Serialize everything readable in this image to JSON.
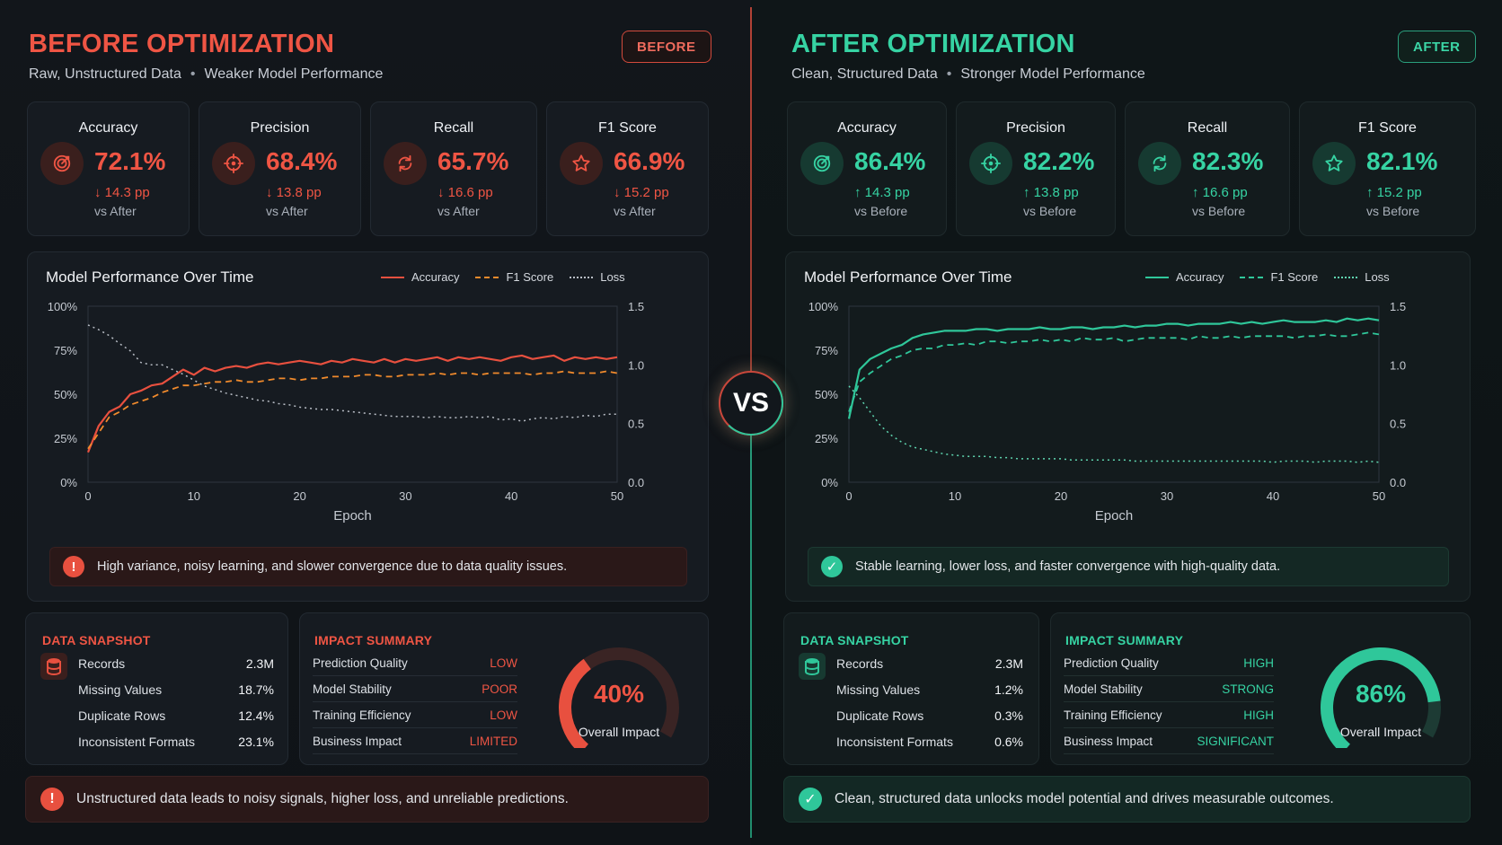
{
  "before": {
    "title": "BEFORE OPTIMIZATION",
    "subtitle_a": "Raw, Unstructured Data",
    "subtitle_sep": "•",
    "subtitle_b": "Weaker Model Performance",
    "tag": "BEFORE",
    "metrics": [
      {
        "label": "Accuracy",
        "value": "72.1%",
        "delta": "↓ 14.3 pp",
        "vs": "vs After",
        "icon": "target-icon"
      },
      {
        "label": "Precision",
        "value": "68.4%",
        "delta": "↓ 13.8 pp",
        "vs": "vs After",
        "icon": "crosshair-icon"
      },
      {
        "label": "Recall",
        "value": "65.7%",
        "delta": "↓ 16.6 pp",
        "vs": "vs After",
        "icon": "refresh-icon"
      },
      {
        "label": "F1 Score",
        "value": "66.9%",
        "delta": "↓ 15.2 pp",
        "vs": "vs After",
        "icon": "star-icon"
      }
    ],
    "note": "High variance, noisy learning, and slower convergence due to data quality issues.",
    "note_icon": "!",
    "snapshot": {
      "heading": "DATA SNAPSHOT",
      "rows": [
        {
          "label": "Records",
          "value": "2.3M"
        },
        {
          "label": "Missing Values",
          "value": "18.7%"
        },
        {
          "label": "Duplicate Rows",
          "value": "12.4%"
        },
        {
          "label": "Inconsistent Formats",
          "value": "23.1%"
        }
      ]
    },
    "impact": {
      "heading": "IMPACT SUMMARY",
      "rows": [
        {
          "label": "Prediction Quality",
          "value": "LOW"
        },
        {
          "label": "Model Stability",
          "value": "POOR"
        },
        {
          "label": "Training Efficiency",
          "value": "LOW"
        },
        {
          "label": "Business Impact",
          "value": "LIMITED"
        }
      ],
      "gauge_value": "40%",
      "gauge_fraction": 0.4,
      "gauge_label": "Overall Impact"
    },
    "footer": "Unstructured data leads to noisy signals, higher loss, and unreliable predictions.",
    "footer_icon": "!"
  },
  "after": {
    "title": "AFTER OPTIMIZATION",
    "subtitle_a": "Clean, Structured Data",
    "subtitle_sep": "•",
    "subtitle_b": "Stronger Model Performance",
    "tag": "AFTER",
    "metrics": [
      {
        "label": "Accuracy",
        "value": "86.4%",
        "delta": "↑ 14.3 pp",
        "vs": "vs Before",
        "icon": "target-icon"
      },
      {
        "label": "Precision",
        "value": "82.2%",
        "delta": "↑ 13.8 pp",
        "vs": "vs Before",
        "icon": "crosshair-icon"
      },
      {
        "label": "Recall",
        "value": "82.3%",
        "delta": "↑ 16.6 pp",
        "vs": "vs Before",
        "icon": "refresh-icon"
      },
      {
        "label": "F1 Score",
        "value": "82.1%",
        "delta": "↑ 15.2 pp",
        "vs": "vs Before",
        "icon": "star-icon"
      }
    ],
    "note": "Stable learning, lower loss, and faster convergence with high-quality data.",
    "note_icon": "✓",
    "snapshot": {
      "heading": "DATA SNAPSHOT",
      "rows": [
        {
          "label": "Records",
          "value": "2.3M"
        },
        {
          "label": "Missing Values",
          "value": "1.2%"
        },
        {
          "label": "Duplicate Rows",
          "value": "0.3%"
        },
        {
          "label": "Inconsistent Formats",
          "value": "0.6%"
        }
      ]
    },
    "impact": {
      "heading": "IMPACT SUMMARY",
      "rows": [
        {
          "label": "Prediction Quality",
          "value": "HIGH"
        },
        {
          "label": "Model Stability",
          "value": "STRONG"
        },
        {
          "label": "Training Efficiency",
          "value": "HIGH"
        },
        {
          "label": "Business Impact",
          "value": "SIGNIFICANT"
        }
      ],
      "gauge_value": "86%",
      "gauge_fraction": 0.86,
      "gauge_label": "Overall Impact"
    },
    "footer": "Clean, structured data unlocks model potential and drives measurable outcomes.",
    "footer_icon": "✓"
  },
  "vs_label": "VS",
  "colors": {
    "before_accent": "#e8503f",
    "before_orange": "#f08a2c",
    "after_accent": "#2fc79a",
    "loss_before": "#b9bec6",
    "loss_after": "#5fd6b0"
  },
  "chart_data": [
    {
      "type": "line",
      "panel": "before",
      "title": "Model Performance Over Time",
      "xlabel": "Epoch",
      "ylabel": "",
      "xlim": [
        0,
        50
      ],
      "ylim": [
        0,
        100
      ],
      "y2lim": [
        0,
        1.5
      ],
      "x_ticks": [
        "0",
        "10",
        "20",
        "30",
        "40",
        "50"
      ],
      "y_ticks": [
        "0%",
        "25%",
        "50%",
        "75%",
        "100%"
      ],
      "y2_ticks": [
        "0.0",
        "0.5",
        "1.0",
        "1.5"
      ],
      "legend_position": "top-right",
      "grid": false,
      "x": [
        0,
        1,
        2,
        3,
        4,
        5,
        6,
        7,
        8,
        9,
        10,
        11,
        12,
        13,
        14,
        15,
        16,
        17,
        18,
        19,
        20,
        21,
        22,
        23,
        24,
        25,
        26,
        27,
        28,
        29,
        30,
        31,
        32,
        33,
        34,
        35,
        36,
        37,
        38,
        39,
        40,
        41,
        42,
        43,
        44,
        45,
        46,
        47,
        48,
        49,
        50
      ],
      "series": [
        {
          "name": "Accuracy",
          "axis": "left",
          "style": "solid",
          "values": [
            17,
            32,
            40,
            43,
            50,
            52,
            55,
            56,
            60,
            64,
            61,
            65,
            63,
            65,
            66,
            65,
            67,
            68,
            67,
            68,
            69,
            68,
            67,
            69,
            68,
            70,
            69,
            68,
            70,
            68,
            70,
            69,
            70,
            71,
            69,
            71,
            70,
            71,
            70,
            69,
            71,
            72,
            70,
            71,
            72,
            69,
            71,
            70,
            71,
            70,
            71
          ]
        },
        {
          "name": "F1 Score",
          "axis": "left",
          "style": "dashed",
          "values": [
            19,
            28,
            37,
            40,
            44,
            46,
            48,
            51,
            53,
            55,
            55,
            56,
            57,
            57,
            58,
            57,
            57,
            58,
            59,
            59,
            58,
            59,
            59,
            60,
            60,
            60,
            61,
            61,
            60,
            60,
            61,
            61,
            61,
            62,
            61,
            62,
            62,
            61,
            62,
            62,
            62,
            62,
            61,
            62,
            62,
            63,
            62,
            62,
            62,
            63,
            62
          ]
        },
        {
          "name": "Loss",
          "axis": "right",
          "style": "dotted",
          "values": [
            1.34,
            1.3,
            1.25,
            1.18,
            1.12,
            1.02,
            1.0,
            1.0,
            0.96,
            0.92,
            0.87,
            0.82,
            0.79,
            0.76,
            0.74,
            0.72,
            0.7,
            0.69,
            0.67,
            0.66,
            0.64,
            0.63,
            0.62,
            0.62,
            0.61,
            0.6,
            0.59,
            0.58,
            0.57,
            0.56,
            0.56,
            0.56,
            0.55,
            0.56,
            0.55,
            0.55,
            0.56,
            0.55,
            0.56,
            0.53,
            0.54,
            0.52,
            0.54,
            0.55,
            0.54,
            0.56,
            0.55,
            0.57,
            0.56,
            0.58,
            0.58
          ]
        }
      ]
    },
    {
      "type": "line",
      "panel": "after",
      "title": "Model Performance Over Time",
      "xlabel": "Epoch",
      "ylabel": "",
      "xlim": [
        0,
        50
      ],
      "ylim": [
        0,
        100
      ],
      "y2lim": [
        0,
        1.5
      ],
      "x_ticks": [
        "0",
        "10",
        "20",
        "30",
        "40",
        "50"
      ],
      "y_ticks": [
        "0%",
        "25%",
        "50%",
        "75%",
        "100%"
      ],
      "y2_ticks": [
        "0.0",
        "0.5",
        "1.0",
        "1.5"
      ],
      "legend_position": "top-right",
      "grid": false,
      "x": [
        0,
        1,
        2,
        3,
        4,
        5,
        6,
        7,
        8,
        9,
        10,
        11,
        12,
        13,
        14,
        15,
        16,
        17,
        18,
        19,
        20,
        21,
        22,
        23,
        24,
        25,
        26,
        27,
        28,
        29,
        30,
        31,
        32,
        33,
        34,
        35,
        36,
        37,
        38,
        39,
        40,
        41,
        42,
        43,
        44,
        45,
        46,
        47,
        48,
        49,
        50
      ],
      "series": [
        {
          "name": "Accuracy",
          "axis": "left",
          "style": "solid",
          "values": [
            36,
            64,
            70,
            73,
            76,
            78,
            82,
            84,
            85,
            86,
            86,
            86,
            87,
            87,
            86,
            87,
            87,
            87,
            88,
            87,
            87,
            88,
            88,
            87,
            88,
            88,
            89,
            88,
            89,
            89,
            90,
            90,
            89,
            90,
            90,
            90,
            91,
            90,
            91,
            90,
            91,
            92,
            91,
            91,
            91,
            92,
            91,
            93,
            92,
            93,
            92
          ]
        },
        {
          "name": "F1 Score",
          "axis": "left",
          "style": "dashed",
          "values": [
            40,
            57,
            62,
            66,
            70,
            72,
            75,
            76,
            76,
            78,
            78,
            79,
            78,
            80,
            80,
            79,
            80,
            80,
            81,
            80,
            81,
            80,
            82,
            81,
            81,
            82,
            80,
            81,
            82,
            82,
            82,
            82,
            81,
            83,
            82,
            82,
            83,
            82,
            83,
            83,
            83,
            83,
            82,
            83,
            83,
            84,
            83,
            83,
            84,
            85,
            84
          ]
        },
        {
          "name": "Loss",
          "axis": "right",
          "style": "dotted",
          "values": [
            0.82,
            0.72,
            0.6,
            0.48,
            0.4,
            0.34,
            0.3,
            0.28,
            0.26,
            0.24,
            0.23,
            0.22,
            0.22,
            0.22,
            0.21,
            0.21,
            0.2,
            0.2,
            0.2,
            0.2,
            0.2,
            0.19,
            0.19,
            0.19,
            0.19,
            0.19,
            0.19,
            0.18,
            0.18,
            0.18,
            0.18,
            0.18,
            0.18,
            0.18,
            0.18,
            0.18,
            0.18,
            0.18,
            0.18,
            0.18,
            0.17,
            0.18,
            0.18,
            0.18,
            0.17,
            0.18,
            0.18,
            0.18,
            0.17,
            0.18,
            0.17
          ]
        }
      ]
    }
  ]
}
